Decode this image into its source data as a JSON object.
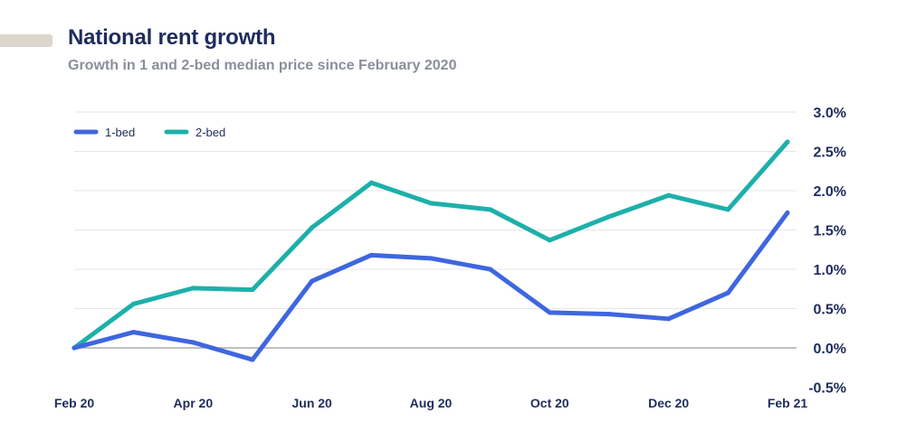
{
  "header": {
    "title": "National rent growth",
    "subtitle": "Growth in 1 and 2-bed median price since February 2020"
  },
  "colors": {
    "series_1bed": "#3f66e0",
    "series_2bed": "#1db0aa",
    "text": "#1f2d5c",
    "grid": "#e6e6e6",
    "zero_line": "#9a9a9a",
    "accent": "#dcd6cc"
  },
  "chart_data": {
    "type": "line",
    "title": "National rent growth",
    "subtitle": "Growth in 1 and 2-bed median price since February 2020",
    "x": [
      "Feb 20",
      "Mar 20",
      "Apr 20",
      "May 20",
      "Jun 20",
      "Jul 20",
      "Aug 20",
      "Sep 20",
      "Oct 20",
      "Nov 20",
      "Dec 20",
      "Jan 21",
      "Feb 21"
    ],
    "x_tick_labels": [
      "Feb 20",
      "Apr 20",
      "Jun 20",
      "Aug 20",
      "Oct 20",
      "Dec 20",
      "Feb 21"
    ],
    "series": [
      {
        "name": "1-bed",
        "color": "#3f66e0",
        "values": [
          0.0,
          0.2,
          0.07,
          -0.15,
          0.85,
          1.18,
          1.14,
          1.0,
          0.45,
          0.43,
          0.37,
          0.7,
          1.72
        ]
      },
      {
        "name": "2-bed",
        "color": "#1db0aa",
        "values": [
          0.0,
          0.56,
          0.76,
          0.74,
          1.53,
          2.1,
          1.84,
          1.76,
          1.37,
          1.67,
          1.94,
          1.76,
          2.62
        ]
      }
    ],
    "y_ticks": [
      -0.5,
      0.0,
      0.5,
      1.0,
      1.5,
      2.0,
      2.5,
      3.0
    ],
    "y_tick_labels": [
      "-0.5%",
      "0.0%",
      "0.5%",
      "1.0%",
      "1.5%",
      "2.0%",
      "2.5%",
      "3.0%"
    ],
    "ylim": [
      -0.5,
      3.0
    ],
    "xlabel": "",
    "ylabel": "",
    "grid": true,
    "legend": "top-left"
  }
}
